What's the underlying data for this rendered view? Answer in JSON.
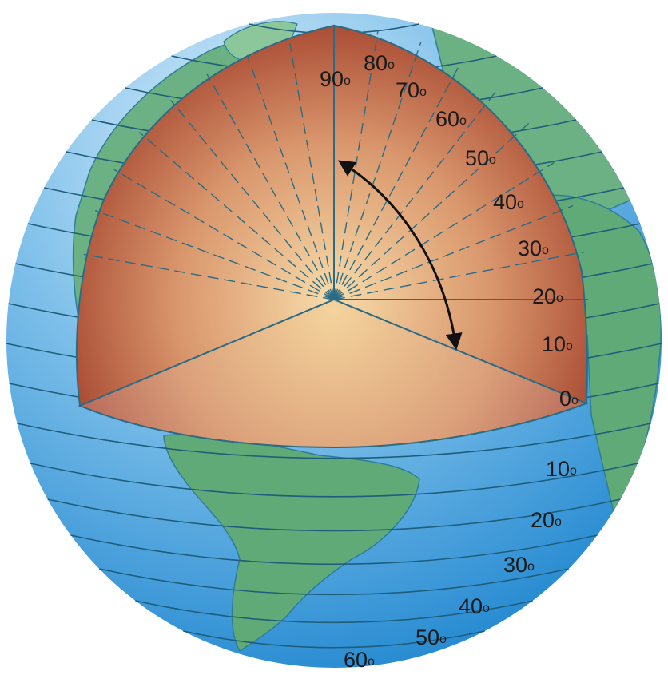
{
  "figure": {
    "upper_degree_labels": [
      "90",
      "80",
      "70",
      "60",
      "50",
      "40",
      "30",
      "20",
      "10",
      "0"
    ],
    "lower_degree_labels": [
      "10",
      "20",
      "30",
      "40",
      "50",
      "60"
    ],
    "degree_symbol": "o"
  },
  "colors": {
    "ocean_light": "#cfe8f7",
    "ocean_dark": "#2f95d8",
    "land": "#5faa77",
    "land_edge": "#2e7f96",
    "latitude_line": "#1f5e7a",
    "cutaway_light": "#f6d7a2",
    "cutaway_dark": "#a84a35",
    "arrow": "#111111"
  }
}
